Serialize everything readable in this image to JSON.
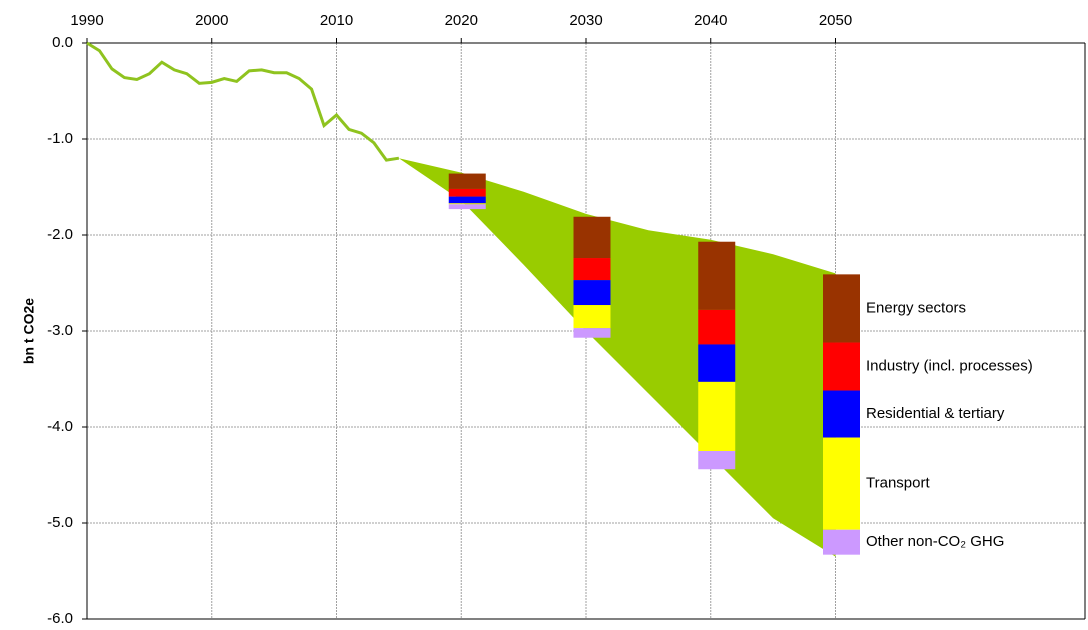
{
  "chart_data": {
    "type": "line",
    "y_label": "bn t CO2e",
    "xlim": [
      1990,
      2070
    ],
    "xticks": [
      1990,
      2000,
      2010,
      2020,
      2030,
      2040,
      2050
    ],
    "ylim": [
      -6,
      0
    ],
    "yticks": [
      {
        "value": 0,
        "label": "0.0"
      },
      {
        "value": -1,
        "label": "-1.0"
      },
      {
        "value": -2,
        "label": "-2.0"
      },
      {
        "value": -3,
        "label": "-3.0"
      },
      {
        "value": -4,
        "label": "-4.0"
      },
      {
        "value": -5,
        "label": "-5.0"
      },
      {
        "value": -6,
        "label": "-6.0"
      }
    ],
    "grid": true,
    "series": [
      {
        "color": "#8fc31f",
        "x": [
          1990,
          1991,
          1992,
          1993,
          1994,
          1995,
          1996,
          1997,
          1998,
          1999,
          2000,
          2001,
          2002,
          2003,
          2004,
          2005,
          2006,
          2007,
          2008,
          2009,
          2010,
          2011,
          2012,
          2013,
          2014,
          2015
        ],
        "values": [
          0,
          -0.08,
          -0.27,
          -0.36,
          -0.38,
          -0.32,
          -0.2,
          -0.28,
          -0.32,
          -0.42,
          -0.41,
          -0.37,
          -0.4,
          -0.29,
          -0.28,
          -0.31,
          -0.31,
          -0.37,
          -0.48,
          -0.86,
          -0.75,
          -0.9,
          -0.94,
          -1.04,
          -1.22,
          -1.2
        ]
      }
    ],
    "band": {
      "color": "#99cc00",
      "x": [
        2015,
        2020,
        2025,
        2030,
        2035,
        2040,
        2045,
        2050
      ],
      "upper": [
        -1.2,
        -1.35,
        -1.55,
        -1.78,
        -1.95,
        -2.05,
        -2.2,
        -2.4
      ],
      "lower": [
        -1.2,
        -1.64,
        -2.31,
        -3.0,
        -3.65,
        -4.3,
        -4.95,
        -5.35
      ]
    },
    "stacks": {
      "x": [
        2020,
        2030,
        2040,
        2050
      ],
      "base": [
        -1.36,
        -1.81,
        -2.07,
        -2.41
      ],
      "series": [
        {
          "name": "Energy sectors",
          "color": "#993300",
          "values": [
            -0.16,
            -0.43,
            -0.71,
            -0.71
          ]
        },
        {
          "name": "Industry (incl. processes)",
          "color": "#ff0000",
          "values": [
            -0.08,
            -0.23,
            -0.36,
            -0.5
          ]
        },
        {
          "name": "Residential & tertiary",
          "color": "#0000ff",
          "values": [
            -0.07,
            -0.26,
            -0.39,
            -0.49
          ]
        },
        {
          "name": "Transport",
          "color": "#ffff00",
          "values": [
            -0.01,
            -0.24,
            -0.72,
            -0.96
          ]
        },
        {
          "name": "Other non-CO₂ GHG",
          "color": "#cc99ff",
          "values": [
            -0.05,
            -0.1,
            -0.19,
            -0.26
          ]
        }
      ]
    }
  }
}
